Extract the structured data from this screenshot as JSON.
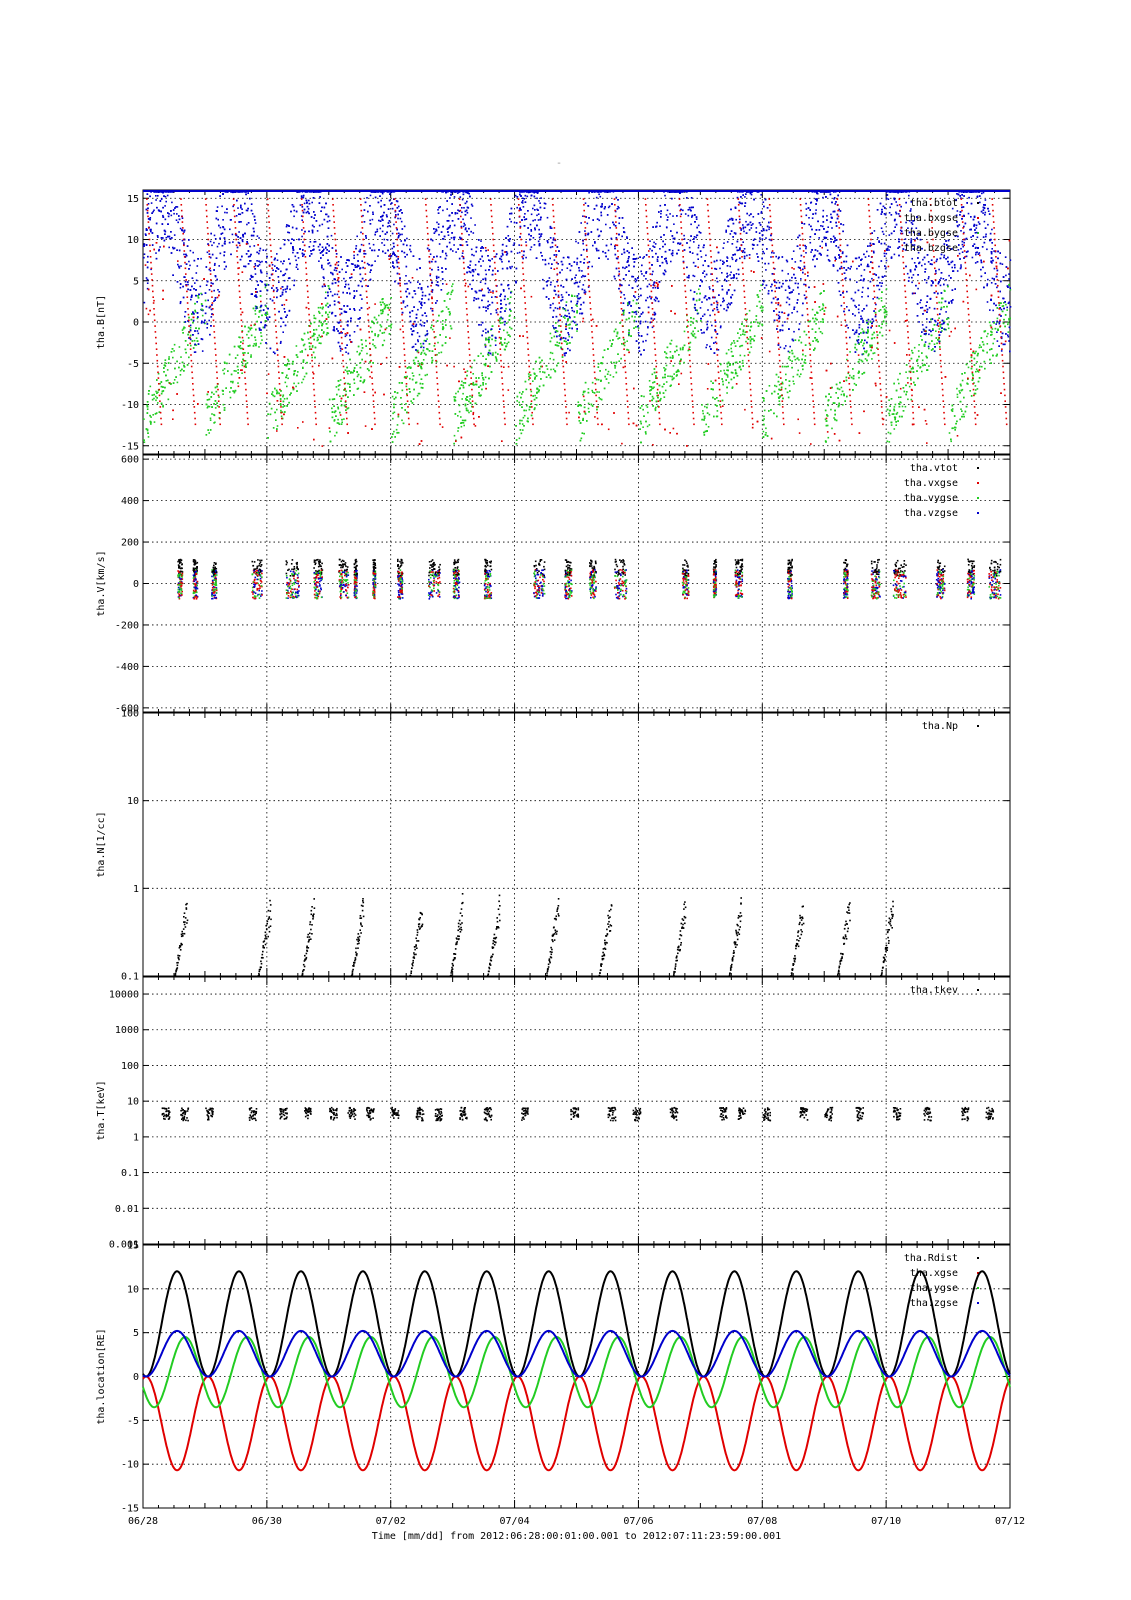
{
  "page_title": "-",
  "time_axis": {
    "ticks": [
      "06/28",
      "06/30",
      "07/02",
      "07/04",
      "07/06",
      "07/08",
      "07/10",
      "07/12"
    ],
    "label": "Time [mm/dd]  from 2012:06:28:00:01:00.001  to  2012:07:11:23:59:00.001"
  },
  "colors": {
    "black": "#000000",
    "red": "#e00000",
    "green": "#22cc22",
    "blue": "#0000cc"
  },
  "chart_data": [
    {
      "type": "scatter",
      "ylabel": "tha.B[nT]",
      "ylim": [
        -16,
        16
      ],
      "yticks": [
        15,
        10,
        5,
        0,
        -5,
        -10,
        -15
      ],
      "legend": [
        "tha.btot",
        "tha.bxgse",
        "tha.bygse",
        "tha.bzgse"
      ],
      "series": [
        {
          "name": "tha.btot",
          "color": "black",
          "values": []
        },
        {
          "name": "tha.bxgse",
          "color": "red",
          "values": []
        },
        {
          "name": "tha.bygse",
          "color": "green",
          "values": []
        },
        {
          "name": "tha.bzgse",
          "color": "blue",
          "values": []
        }
      ]
    },
    {
      "type": "scatter",
      "ylabel": "tha.V[km/s]",
      "ylim": [
        -620,
        620
      ],
      "yticks": [
        600,
        400,
        200,
        0,
        -200,
        -400,
        -600
      ],
      "legend": [
        "tha.vtot",
        "tha.vxgse",
        "tha.vygse",
        "tha.vzgse"
      ],
      "series": [
        {
          "name": "tha.vtot",
          "color": "black",
          "values": []
        },
        {
          "name": "tha.vxgse",
          "color": "red",
          "values": []
        },
        {
          "name": "tha.vygse",
          "color": "green",
          "values": []
        },
        {
          "name": "tha.vzgse",
          "color": "blue",
          "values": []
        }
      ]
    },
    {
      "type": "scatter",
      "ylabel": "tha.N[1/cc]",
      "yscale": "log",
      "ylim": [
        0.1,
        100
      ],
      "yticks": [
        "100",
        "10",
        "1",
        "0.1"
      ],
      "legend": [
        "tha.Np"
      ],
      "series": [
        {
          "name": "tha.Np",
          "color": "black",
          "values": []
        }
      ]
    },
    {
      "type": "scatter",
      "ylabel": "tha.T[keV]",
      "yscale": "log",
      "ylim": [
        0.001,
        30000
      ],
      "yticks": [
        "10000",
        "1000",
        "100",
        "10",
        "1",
        "0.1",
        "0.01",
        "0.001"
      ],
      "legend": [
        "tha.tkev"
      ],
      "series": [
        {
          "name": "tha.tkev",
          "color": "black",
          "values": []
        }
      ]
    },
    {
      "type": "line",
      "ylabel": "tha.location[RE]",
      "ylim": [
        -15,
        15
      ],
      "yticks": [
        15,
        10,
        5,
        0,
        -5,
        -10,
        -15
      ],
      "legend": [
        "tha.Rdist",
        "tha.xgse",
        "tha.ygse",
        "tha.zgse"
      ],
      "orbit_period_days": 1.0,
      "series": [
        {
          "name": "tha.Rdist",
          "color": "black",
          "max": 12,
          "min": 0
        },
        {
          "name": "tha.xgse",
          "color": "red",
          "max": 0,
          "min": -10.7
        },
        {
          "name": "tha.ygse",
          "color": "green",
          "max": 4.5,
          "min": -3.5
        },
        {
          "name": "tha.zgse",
          "color": "blue",
          "max": 5.2,
          "min": 0
        }
      ]
    }
  ]
}
